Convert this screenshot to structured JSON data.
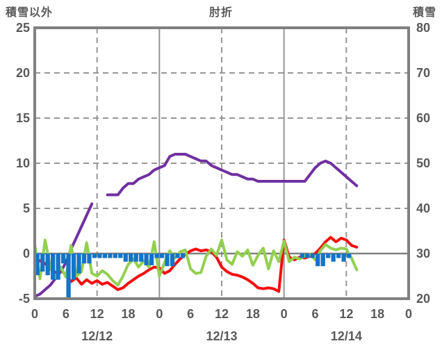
{
  "header": {
    "left_axis_title": "積雪以外",
    "station_title": "肘折",
    "right_axis_title": "積雪"
  },
  "chart_data": {
    "type": "composite",
    "title": "肘折",
    "subtitle_left": "積雪以外",
    "subtitle_right": "積雪",
    "left_axis": {
      "title": "積雪以外",
      "min": -5,
      "max": 25,
      "ticks": [
        25,
        20,
        15,
        10,
        5,
        0,
        -5
      ]
    },
    "right_axis": {
      "title": "積雪",
      "min": 20,
      "max": 80,
      "ticks": [
        80,
        70,
        60,
        50,
        40,
        30,
        20
      ]
    },
    "x_axis": {
      "unit": "hour",
      "min": 0,
      "max": 72,
      "tick_hours": [
        0,
        6,
        12,
        18,
        24,
        30,
        36,
        42,
        48,
        54,
        60,
        66,
        72
      ],
      "tick_labels": [
        "0",
        "6",
        "12",
        "18",
        "0",
        "6",
        "12",
        "18",
        "0",
        "6",
        "12",
        "18",
        "0"
      ],
      "date_labels": [
        {
          "text": "12/12",
          "hour": 12
        },
        {
          "text": "12/13",
          "hour": 36
        },
        {
          "text": "12/14",
          "hour": 60
        }
      ],
      "dashed_grid_hours": [
        12,
        36,
        60
      ],
      "solid_grid_hours": [
        24,
        48
      ]
    },
    "dashed_grid_left_values": [
      20,
      15,
      10,
      5
    ],
    "zero_line_left_value": 0,
    "colors": {
      "frame": "#808080",
      "grid": "#969696",
      "text": "#595959",
      "snow_depth_line": "#7030a0",
      "red_line": "#f40d0d",
      "green_line": "#92d050",
      "blue_bars": "#1374c8"
    },
    "series": [
      {
        "id": "snow-depth-line",
        "label": "積雪",
        "type": "line",
        "axis": "right",
        "color": "#7030a0",
        "start_hour": 0,
        "step": 1,
        "values": [
          20.5,
          21,
          22,
          23,
          24.5,
          26,
          28,
          31,
          33.5,
          36,
          38.5,
          41,
          null,
          null,
          43,
          43,
          43,
          44.5,
          45.5,
          45.5,
          46.5,
          47,
          47.5,
          48.5,
          49,
          49.5,
          51.5,
          52,
          52,
          52,
          51.5,
          51,
          50.5,
          50.5,
          49.5,
          49,
          48.5,
          48,
          47.5,
          47.5,
          47,
          46.5,
          46.5,
          46,
          46,
          46,
          46,
          46,
          46,
          46,
          46,
          46,
          46,
          47.5,
          49,
          50,
          50.5,
          50,
          49,
          48,
          47,
          46,
          45
        ]
      },
      {
        "id": "red-line",
        "label": "red-line",
        "type": "line",
        "axis": "left",
        "color": "#f40d0d",
        "start_hour": 0,
        "step": 1,
        "values": [
          -0.6,
          -0.8,
          -1.1,
          -1.7,
          -2.1,
          -1.8,
          -2.4,
          -3.1,
          -2.7,
          -3.4,
          -2.9,
          -3.3,
          -3.0,
          -3.4,
          -3.2,
          -3.6,
          -4.0,
          -3.8,
          -3.3,
          -2.9,
          -2.5,
          -2.2,
          -1.8,
          -1.5,
          -1.6,
          -2.2,
          -1.9,
          -1.2,
          -0.6,
          -0.1,
          0.3,
          0.5,
          0.3,
          0.4,
          0.2,
          -0.4,
          -1.5,
          -2.0,
          -2.3,
          -2.4,
          -2.6,
          -2.9,
          -3.3,
          -3.8,
          -3.9,
          -3.8,
          -3.9,
          -4.2,
          1.5,
          -0.4,
          -0.7,
          -0.4,
          -0.5,
          -0.3,
          0.0,
          0.6,
          1.3,
          1.8,
          1.3,
          1.7,
          1.5,
          0.9,
          0.7
        ]
      },
      {
        "id": "green-line",
        "label": "green-line",
        "type": "line",
        "axis": "left",
        "color": "#92d050",
        "start_hour": 0,
        "step": 1,
        "values": [
          1.0,
          -2.8,
          1.5,
          -1.5,
          -2.7,
          -1.5,
          -2.6,
          0.9,
          -2.5,
          -2.0,
          1.2,
          -2.2,
          -2.5,
          -1.9,
          -2.3,
          -3.0,
          -3.5,
          -2.5,
          -1.2,
          -0.6,
          -1.5,
          -0.8,
          -1.5,
          1.3,
          -2.5,
          -1.0,
          0.3,
          -0.5,
          0.2,
          0.4,
          -1.7,
          -2.2,
          -2.1,
          -0.3,
          0.5,
          -0.2,
          1.5,
          -0.7,
          -1.2,
          0.2,
          -0.3,
          0.4,
          -1.3,
          -0.2,
          0.6,
          -1.7,
          0.3,
          -0.9,
          1.4,
          -0.9,
          -0.4,
          -0.6,
          -0.3,
          -0.1,
          -0.7,
          0.3,
          1.0,
          0.6,
          0.4,
          0.6,
          0.5,
          -0.5,
          -1.8
        ]
      },
      {
        "id": "blue-bars",
        "label": "blue-bars",
        "type": "bar",
        "axis": "left",
        "color": "#1374c8",
        "start_hour": 0,
        "step": 1,
        "values": [
          -2.4,
          -2.0,
          -2.4,
          -2.9,
          -2.9,
          -1.1,
          -5.0,
          -2.9,
          -2.2,
          -1.1,
          -1.1,
          -0.5,
          -0.5,
          -0.5,
          -0.5,
          -0.5,
          -0.5,
          -0.9,
          -0.9,
          -0.9,
          -0.9,
          -1.3,
          -1.3,
          -0.5,
          -0.5,
          -1.4,
          -1.4,
          -0.5,
          -0.5,
          0,
          0,
          0,
          0,
          0,
          0,
          0,
          0,
          0,
          0,
          0,
          0,
          0,
          0,
          0,
          0,
          0,
          0,
          0,
          0,
          0,
          0,
          -0.5,
          -0.5,
          -0.5,
          -1.4,
          -1.4,
          -0.5,
          -0.9,
          -0.5,
          -0.9,
          -0.5,
          0,
          0
        ]
      }
    ]
  }
}
